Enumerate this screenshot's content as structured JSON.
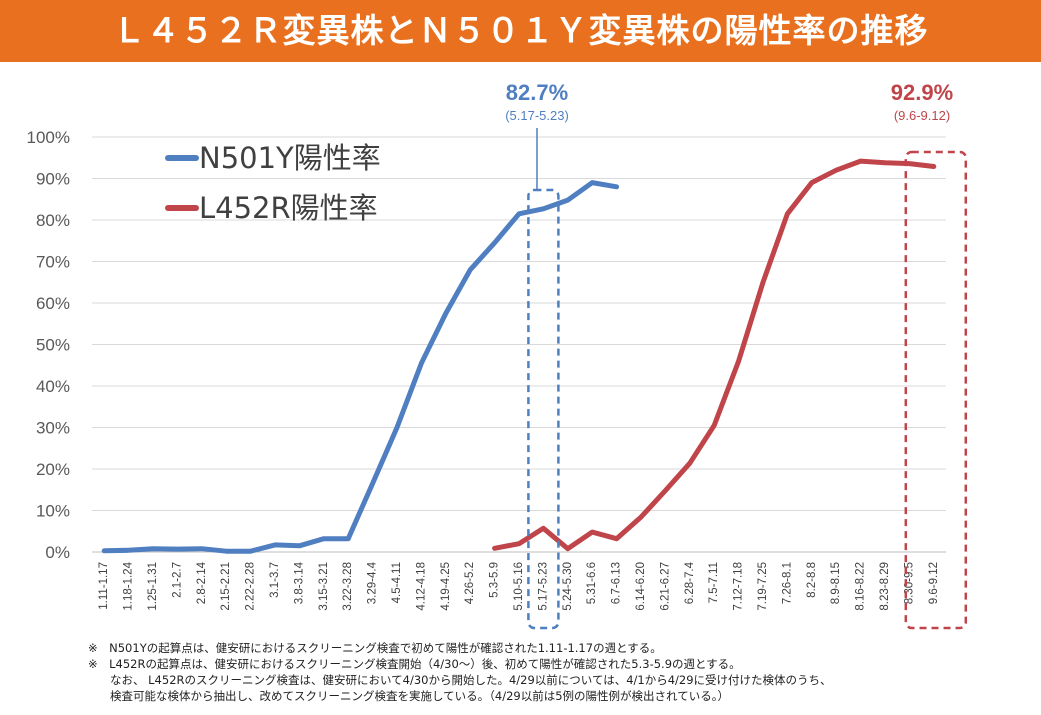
{
  "title": "Ｌ４５２Ｒ変異株とＮ５０１Ｙ変異株の陽性率の推移",
  "colors": {
    "title_bg": "#e8701e",
    "n501y": "#4f7fc1",
    "l452r": "#c0454a"
  },
  "chart_data": {
    "type": "line",
    "categories": [
      "1.11-1.17",
      "1.18-1.24",
      "1.25-1.31",
      "2.1-2.7",
      "2.8-2.14",
      "2.15-2.21",
      "2.22-2.28",
      "3.1-3.7",
      "3.8-3.14",
      "3.15-3.21",
      "3.22-3.28",
      "3.29-4.4",
      "4.5-4.11",
      "4.12-4.18",
      "4.19-4.25",
      "4.26-5.2",
      "5.3-5.9",
      "5.10-5.16",
      "5.17-5.23",
      "5.24-5.30",
      "5.31-6.6",
      "6.7-6.13",
      "6.14-6.20",
      "6.21-6.27",
      "6.28-7.4",
      "7.5-7.11",
      "7.12-7.18",
      "7.19-7.25",
      "7.26-8.1",
      "8.2-8.8",
      "8.9-8.15",
      "8.16-8.22",
      "8.23-8.29",
      "8.30-9.5",
      "9.6-9.12"
    ],
    "ylim": [
      0,
      100
    ],
    "yticks": [
      "0%",
      "10%",
      "20%",
      "30%",
      "40%",
      "50%",
      "60%",
      "70%",
      "80%",
      "90%",
      "100%"
    ],
    "series": [
      {
        "name": "N501Y陽性率",
        "values": [
          0.3,
          0.4,
          0.8,
          0.7,
          0.8,
          0.2,
          0.2,
          1.7,
          1.5,
          3.2,
          3.2,
          16.5,
          30.0,
          45.5,
          57.5,
          68.0,
          74.5,
          81.5,
          82.7,
          84.8,
          89.0,
          88.0,
          null,
          null,
          null,
          null,
          null,
          null,
          null,
          null,
          null,
          null,
          null,
          null,
          null
        ]
      },
      {
        "name": "L452R陽性率",
        "values": [
          null,
          null,
          null,
          null,
          null,
          null,
          null,
          null,
          null,
          null,
          null,
          null,
          null,
          null,
          null,
          null,
          0.9,
          2.0,
          5.7,
          0.8,
          4.8,
          3.2,
          8.4,
          14.8,
          21.4,
          30.5,
          46.0,
          65.0,
          81.5,
          89.0,
          92.0,
          94.2,
          93.8,
          93.6,
          92.9
        ]
      }
    ],
    "annotations": [
      {
        "series": "N501Y陽性率",
        "category": "5.17-5.23",
        "value": "82.7%",
        "period": "(5.17-5.23)"
      },
      {
        "series": "L452R陽性率",
        "category": "9.6-9.12",
        "value": "92.9%",
        "period": "(9.6-9.12)"
      }
    ]
  },
  "notes": [
    "※　N501Yの起算点は、健安研におけるスクリーニング検査で初めて陽性が確認された1.11-1.17の週とする。",
    "※　L452Rの起算点は、健安研におけるスクリーニング検査開始（4/30〜）後、初めて陽性が確認された5.3-5.9の週とする。",
    "なお、 L452Rのスクリーニング検査は、健安研において4/30から開始した。4/29以前については、4/1から4/29に受け付けた検体のうち、",
    "検査可能な検体から抽出し、改めてスクリーニング検査を実施している。（4/29以前は5例の陽性例が検出されている。）"
  ]
}
